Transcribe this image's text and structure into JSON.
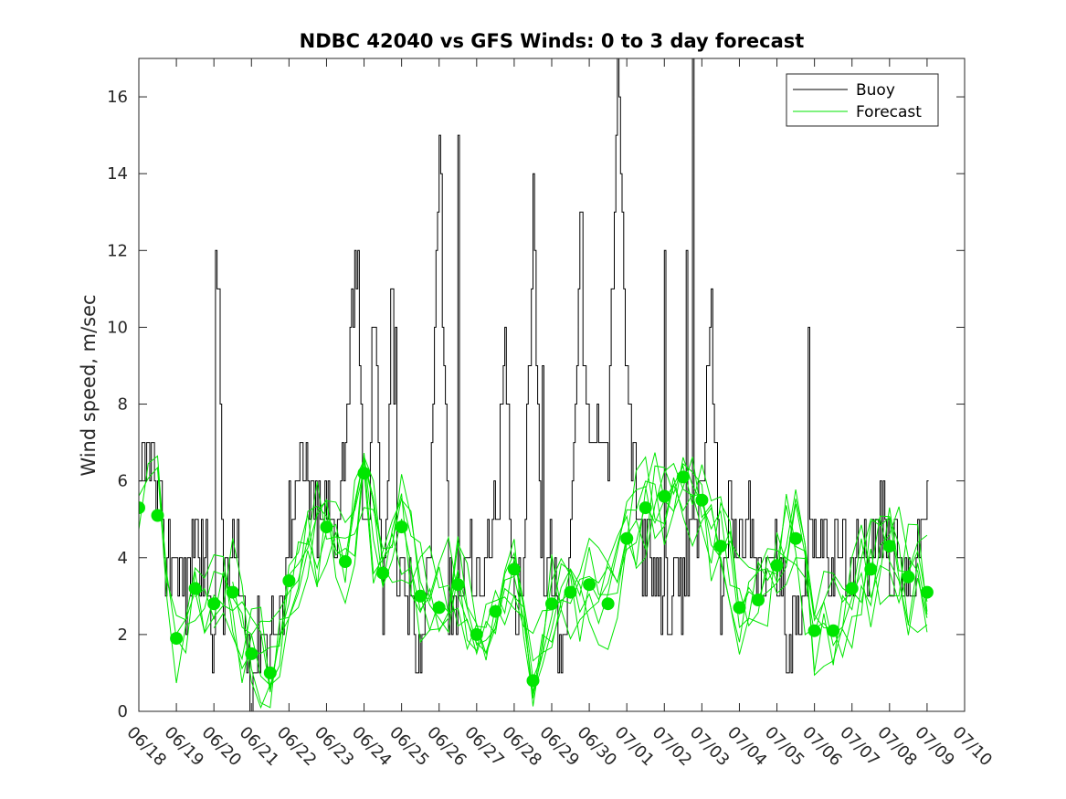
{
  "chart_data": {
    "type": "line",
    "title": "NDBC 42040 vs GFS Winds: 0 to 3 day forecast",
    "xlabel": "",
    "ylabel": "Wind speed, m/sec",
    "xlim": [
      "06/18",
      "07/10"
    ],
    "ylim": [
      0,
      17
    ],
    "yticks": [
      0,
      2,
      4,
      6,
      8,
      10,
      12,
      14,
      16
    ],
    "xtick_labels": [
      "06/18",
      "06/19",
      "06/20",
      "06/21",
      "06/22",
      "06/23",
      "06/24",
      "06/25",
      "06/26",
      "06/27",
      "06/28",
      "06/29",
      "06/30",
      "07/01",
      "07/02",
      "07/03",
      "07/04",
      "07/05",
      "07/06",
      "07/07",
      "07/08",
      "07/09",
      "07/10"
    ],
    "grid": false,
    "legend": {
      "position": "top-right",
      "entries": [
        {
          "label": "Buoy",
          "color": "#000000"
        },
        {
          "label": "Forecast",
          "color": "#00e600"
        }
      ]
    },
    "series": [
      {
        "name": "Buoy",
        "color": "#000000",
        "day_offsets": [
          0.0,
          0.25,
          0.5,
          0.75,
          1.0,
          1.25,
          1.5,
          1.75,
          2.0,
          2.1,
          2.25,
          2.5,
          2.75,
          3.0,
          3.25,
          3.5,
          3.75,
          4.0,
          4.25,
          4.5,
          4.75,
          5.0,
          5.25,
          5.5,
          5.75,
          6.0,
          6.1,
          6.25,
          6.5,
          6.75,
          6.9,
          7.0,
          7.25,
          7.5,
          7.75,
          8.0,
          8.25,
          8.5,
          8.6,
          8.75,
          9.0,
          9.25,
          9.5,
          9.75,
          10.0,
          10.25,
          10.5,
          10.75,
          11.0,
          11.25,
          11.5,
          11.75,
          12.0,
          12.25,
          12.5,
          12.75,
          13.0,
          13.25,
          13.5,
          13.75,
          14.0,
          14.25,
          14.5,
          14.75,
          14.9,
          15.0,
          15.25,
          15.5,
          15.75,
          16.0,
          16.25,
          16.5,
          16.75,
          17.0,
          17.25,
          17.5,
          17.75,
          18.0,
          18.25,
          18.5,
          18.75,
          19.0,
          19.25,
          19.5,
          19.75,
          20.0,
          20.25,
          20.5,
          20.75,
          21.0
        ],
        "values": [
          5,
          7,
          5,
          4,
          4,
          3,
          5,
          4,
          2,
          12,
          3,
          4,
          3,
          1,
          2,
          2,
          2,
          5,
          6,
          6,
          5,
          5,
          5,
          7,
          12,
          5,
          4,
          11,
          3,
          10,
          2,
          3,
          3,
          1,
          5,
          15,
          3,
          2,
          3,
          4,
          3,
          4,
          5,
          9,
          3,
          4,
          13,
          3,
          4,
          1,
          5,
          12,
          6,
          8,
          7,
          17,
          8,
          5,
          4,
          3,
          3,
          3,
          3,
          5,
          5,
          6,
          10,
          3,
          5,
          4,
          5,
          3,
          4,
          4,
          2,
          2,
          4,
          5,
          4,
          4,
          4,
          3,
          5,
          4,
          5,
          4,
          4,
          3,
          4,
          6
        ],
        "note_spikes": [
          [
            2.05,
            12
          ],
          [
            5.85,
            12
          ],
          [
            6.7,
            11
          ],
          [
            6.85,
            10
          ],
          [
            8.5,
            15
          ],
          [
            10.75,
            9
          ],
          [
            11.8,
            13
          ],
          [
            14.0,
            12
          ],
          [
            14.6,
            12
          ],
          [
            14.75,
            17
          ],
          [
            17.85,
            10
          ]
        ]
      },
      {
        "name": "Forecast",
        "color": "#00e600",
        "daily_points": [
          {
            "x": "06/18",
            "y": 5.3
          },
          {
            "x": "06/18 12h",
            "y": 5.1
          },
          {
            "x": "06/19",
            "y": 1.9
          },
          {
            "x": "06/19 12h",
            "y": 3.2
          },
          {
            "x": "06/20",
            "y": 2.8
          },
          {
            "x": "06/20 12h",
            "y": 3.1
          },
          {
            "x": "06/21",
            "y": 1.5
          },
          {
            "x": "06/21 12h",
            "y": 1.0
          },
          {
            "x": "06/22",
            "y": 3.4
          },
          {
            "x": "06/23",
            "y": 4.8
          },
          {
            "x": "06/23 12h",
            "y": 3.9
          },
          {
            "x": "06/24",
            "y": 6.2
          },
          {
            "x": "06/24 12h",
            "y": 3.6
          },
          {
            "x": "06/25",
            "y": 4.8
          },
          {
            "x": "06/25 12h",
            "y": 3.0
          },
          {
            "x": "06/26",
            "y": 2.7
          },
          {
            "x": "06/26 12h",
            "y": 3.3
          },
          {
            "x": "06/27",
            "y": 2.0
          },
          {
            "x": "06/27 12h",
            "y": 2.6
          },
          {
            "x": "06/28",
            "y": 3.7
          },
          {
            "x": "06/28 12h",
            "y": 0.8
          },
          {
            "x": "06/29",
            "y": 2.8
          },
          {
            "x": "06/29 12h",
            "y": 3.1
          },
          {
            "x": "06/30",
            "y": 3.3
          },
          {
            "x": "06/30 12h",
            "y": 2.8
          },
          {
            "x": "07/01",
            "y": 4.5
          },
          {
            "x": "07/01 12h",
            "y": 5.3
          },
          {
            "x": "07/02",
            "y": 5.6
          },
          {
            "x": "07/02 12h",
            "y": 6.1
          },
          {
            "x": "07/03",
            "y": 5.5
          },
          {
            "x": "07/03 12h",
            "y": 4.3
          },
          {
            "x": "07/04",
            "y": 2.7
          },
          {
            "x": "07/04 12h",
            "y": 2.9
          },
          {
            "x": "07/05",
            "y": 3.8
          },
          {
            "x": "07/05 12h",
            "y": 4.5
          },
          {
            "x": "07/06",
            "y": 2.1
          },
          {
            "x": "07/06 12h",
            "y": 2.1
          },
          {
            "x": "07/07",
            "y": 3.2
          },
          {
            "x": "07/07 12h",
            "y": 3.7
          },
          {
            "x": "07/08",
            "y": 4.3
          },
          {
            "x": "07/08 12h",
            "y": 3.5
          },
          {
            "x": "07/09",
            "y": 3.1
          }
        ]
      }
    ]
  }
}
